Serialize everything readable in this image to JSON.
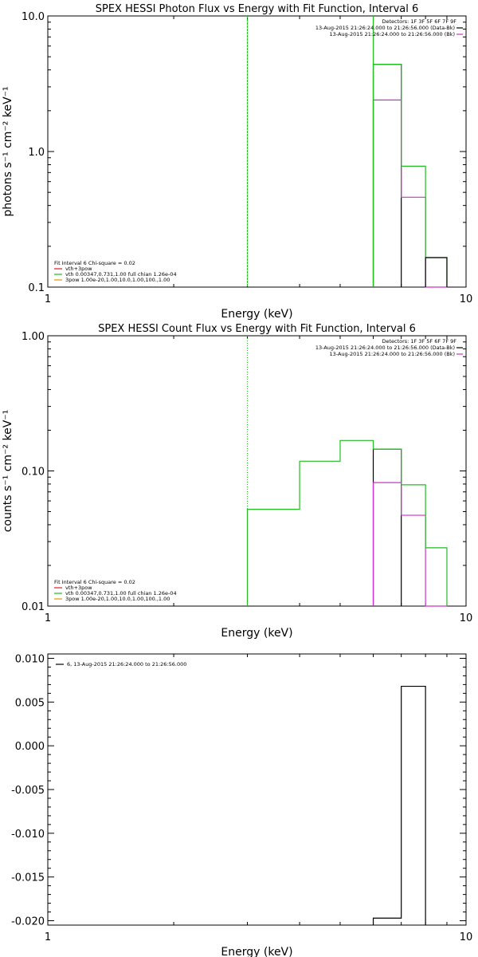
{
  "chart_data": [
    {
      "type": "line",
      "title": "SPEX HESSI Photon Flux vs Energy with Fit Function, Interval 6",
      "xlabel": "Energy (keV)",
      "ylabel": "photons s⁻¹ cm⁻² keV⁻¹",
      "xscale": "log",
      "yscale": "log",
      "xlim": [
        1,
        10
      ],
      "ylim": [
        0.1,
        10
      ],
      "x_tick_labels": [
        "1",
        "10"
      ],
      "y_tick_labels": [
        "0.1",
        "1.0",
        "10.0"
      ],
      "detectors_text": "Detectors: 1F 3F 5F 6F 7F 9F",
      "top_legend": [
        {
          "text": "13-Aug-2015 21:26:24.000 to 21:26:56.000 (Data-Bk)",
          "color": "#000000"
        },
        {
          "text": "13-Aug-2015 21:26:24.000 to 21:26:56.000 (Bk)",
          "color": "#cc33cc"
        }
      ],
      "fit_legend_header": "Fit Interval 6   Chi-square = 0.02",
      "fit_legend": [
        {
          "text": "vth+3pow",
          "color": "#dd2222"
        },
        {
          "text": "vth 0.00347,0.731,1.00  full chian 1.26e-04",
          "color": "#22bb22"
        },
        {
          "text": "3pow 1.00e-20,1.00,10.0,1.00,100.,1.00",
          "color": "#dd9900"
        }
      ],
      "vlines": [
        {
          "x": 3.0,
          "color": "#22bb22",
          "style": "dashed"
        }
      ],
      "series": [
        {
          "color": "#000000",
          "edges": [
            6,
            7
          ],
          "values": [
            4.4
          ]
        },
        {
          "color": "#cc33cc",
          "edges": [
            6,
            7,
            8,
            9
          ],
          "values": [
            2.4,
            0.46,
            0.1
          ]
        },
        {
          "color": "#22bb22",
          "edges": [
            6,
            7,
            8,
            9
          ],
          "values": [
            4.4,
            0.78,
            0.165
          ],
          "drop_left_to": 10
        },
        {
          "color": "#000000",
          "edges": [
            8,
            9
          ],
          "values": [
            0.165
          ]
        }
      ]
    },
    {
      "type": "line",
      "title": "SPEX HESSI Count Flux vs Energy with Fit Function, Interval 6",
      "xlabel": "Energy (keV)",
      "ylabel": "counts s⁻¹ cm⁻² keV⁻¹",
      "xscale": "log",
      "yscale": "log",
      "xlim": [
        1,
        10
      ],
      "ylim": [
        0.01,
        1.0
      ],
      "x_tick_labels": [
        "1",
        "10"
      ],
      "y_tick_labels": [
        "0.01",
        "0.10",
        "1.00"
      ],
      "detectors_text": "Detectors: 1F 3F 5F 6F 7F 9F",
      "top_legend": [
        {
          "text": "13-Aug-2015 21:26:24.000 to 21:26:56.000 (Data-Bk)",
          "color": "#000000"
        },
        {
          "text": "13-Aug-2015 21:26:24.000 to 21:26:56.000 (Bk)",
          "color": "#cc33cc"
        }
      ],
      "fit_legend_header": "Fit Interval 6   Chi-square = 0.02",
      "fit_legend": [
        {
          "text": "vth+3pow",
          "color": "#dd2222"
        },
        {
          "text": "vth 0.00347,0.731,1.00  full chian 1.26e-04",
          "color": "#22bb22"
        },
        {
          "text": "3pow 1.00e-20,1.00,10.0,1.00,100.,1.00",
          "color": "#dd9900"
        }
      ],
      "vlines": [
        {
          "x": 3.0,
          "color": "#22bb22",
          "style": "dotted"
        }
      ],
      "series": [
        {
          "color": "#000000",
          "edges": [
            6,
            7
          ],
          "values": [
            0.145
          ]
        },
        {
          "color": "#cc33cc",
          "edges": [
            6,
            7,
            8,
            9
          ],
          "values": [
            0.082,
            0.047,
            0.01
          ]
        },
        {
          "color": "#22bb22",
          "edges": [
            3,
            4,
            5,
            6,
            7,
            8,
            9
          ],
          "values": [
            0.052,
            0.118,
            0.168,
            0.145,
            0.079,
            0.027
          ]
        }
      ]
    },
    {
      "type": "line",
      "title": "",
      "xlabel": "Energy (keV)",
      "ylabel": "",
      "xscale": "log",
      "yscale": "linear",
      "xlim": [
        1,
        10
      ],
      "ylim": [
        -0.0205,
        0.0105
      ],
      "x_tick_labels": [
        "1",
        "10"
      ],
      "y_ticks": [
        -0.02,
        -0.015,
        -0.01,
        -0.005,
        0.0,
        0.005,
        0.01
      ],
      "y_tick_labels": [
        "-0.020",
        "-0.015",
        "-0.010",
        "-0.005",
        "0.000",
        "0.005",
        "0.010"
      ],
      "legend": [
        {
          "text": "6, 13-Aug-2015 21:26:24.000 to 21:26:56.000",
          "color": "#000000"
        }
      ],
      "series": [
        {
          "color": "#000000",
          "edges": [
            6,
            7,
            8
          ],
          "values": [
            -0.0197,
            0.0068
          ]
        }
      ]
    }
  ]
}
